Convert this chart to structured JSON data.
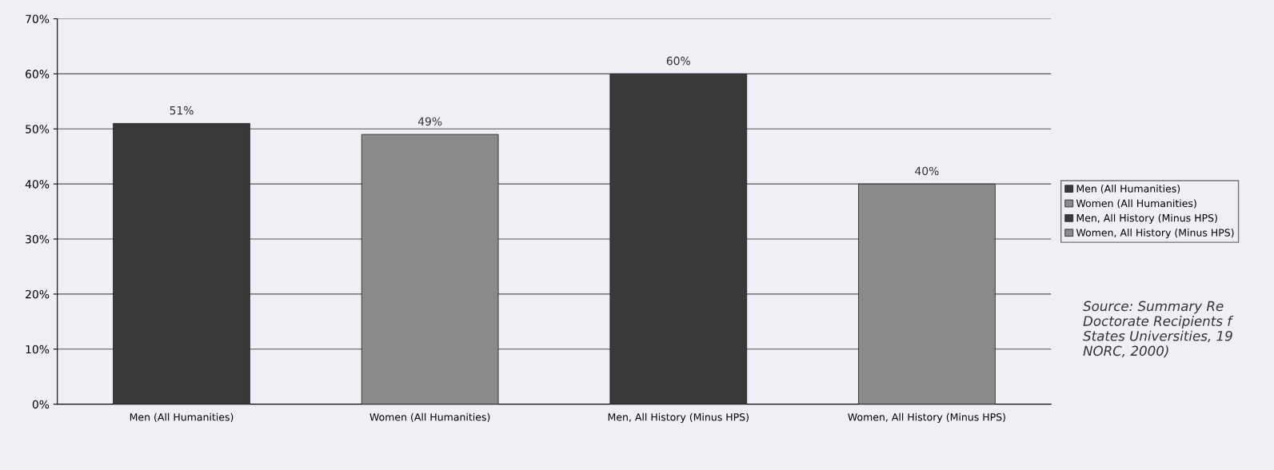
{
  "chart_data": {
    "type": "bar",
    "categories": [
      "Men (All Humanities)",
      "Women (All Humanities)",
      "Men, All History (Minus HPS)",
      "Women, All History (Minus HPS)"
    ],
    "series": [
      {
        "name": "Men (All Humanities)",
        "color": "#3b3839",
        "values": [
          51,
          null,
          null,
          null
        ],
        "value_labels": [
          "51%",
          null,
          null,
          null
        ]
      },
      {
        "name": "Women (All Humanities)",
        "color": "#8c898b",
        "values": [
          null,
          49,
          null,
          null
        ],
        "value_labels": [
          null,
          "49%",
          null,
          null
        ]
      },
      {
        "name": "Men, All History (Minus HPS)",
        "color": "#3b3839",
        "values": [
          null,
          null,
          60,
          null
        ],
        "value_labels": [
          null,
          null,
          "60%",
          null
        ]
      },
      {
        "name": "Women, All History (Minus HPS)",
        "color": "#8c898b",
        "values": [
          null,
          null,
          null,
          40
        ],
        "value_labels": [
          null,
          null,
          null,
          "40%"
        ]
      }
    ],
    "ylim": [
      0,
      70
    ],
    "yticks": [
      {
        "value": 0,
        "label": "0%"
      },
      {
        "value": 10,
        "label": "10%"
      },
      {
        "value": 20,
        "label": "20%"
      },
      {
        "value": 30,
        "label": "30%"
      },
      {
        "value": 40,
        "label": "40%"
      },
      {
        "value": 50,
        "label": "50%"
      },
      {
        "value": 60,
        "label": "60%"
      },
      {
        "value": 70,
        "label": "70%"
      }
    ],
    "grid": "y",
    "legend": "right",
    "annotations": [
      "Source: Summary Re\nDoctorate Recipients f\nStates Universities, 19\nNORC, 2000)"
    ]
  }
}
